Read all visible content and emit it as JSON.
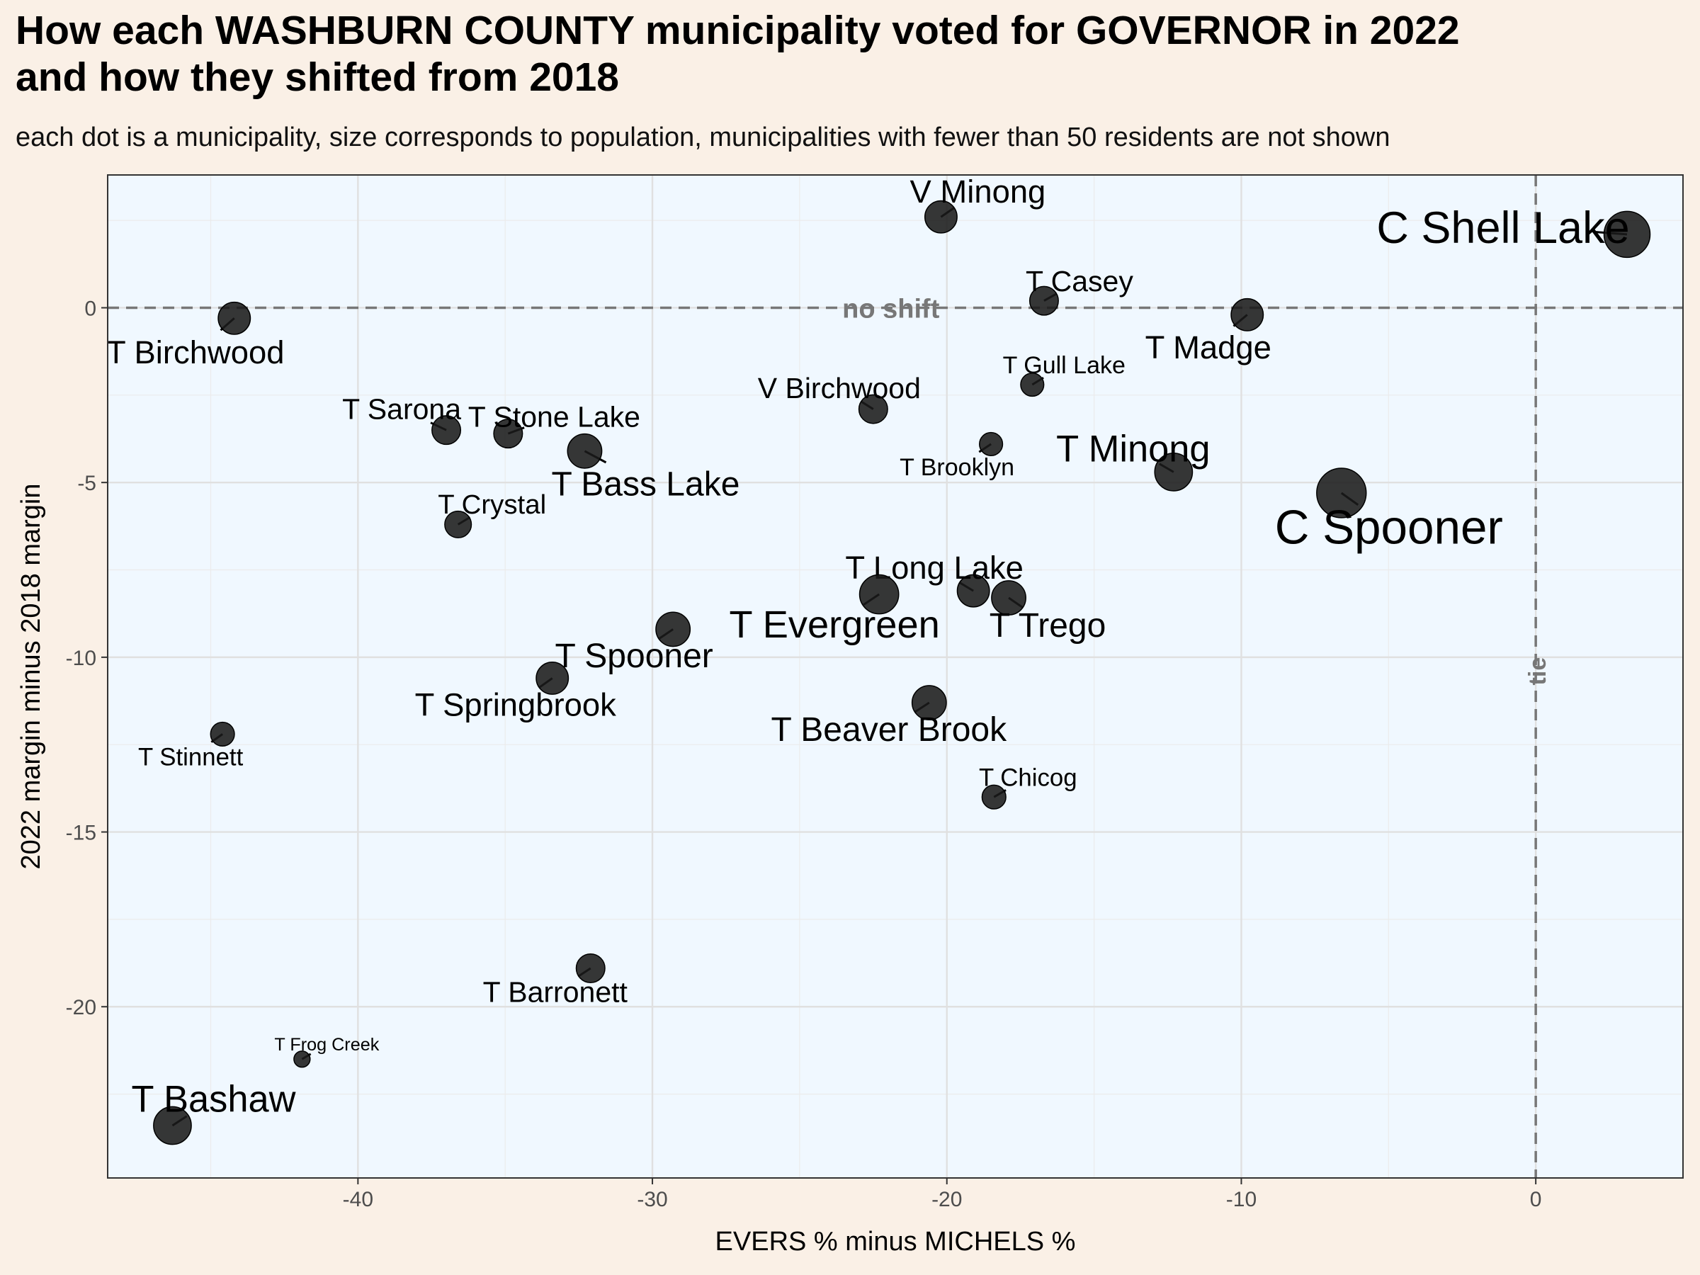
{
  "header": {
    "title_line1": "How each WASHBURN COUNTY municipality voted for GOVERNOR in 2022",
    "title_line2": "and how they shifted from 2018",
    "subtitle": "each dot is a municipality, size corresponds to population, municipalities with fewer than 50 residents are not shown"
  },
  "chart_data": {
    "type": "scatter",
    "title": "How each WASHBURN COUNTY municipality voted for GOVERNOR in 2022 and how they shifted from 2018",
    "subtitle": "each dot is a municipality, size corresponds to population, municipalities with fewer than 50 residents are not shown",
    "xlabel": "EVERS % minus MICHELS %",
    "ylabel": "2022 margin minus 2018 margin",
    "xlim": [
      -48.5,
      5
    ],
    "ylim": [
      -24.9,
      3.8
    ],
    "x_ticks": [
      -40,
      -30,
      -20,
      -10,
      0
    ],
    "y_ticks": [
      0,
      -5,
      -10,
      -15,
      -20
    ],
    "grid": true,
    "reference_lines": [
      {
        "axis": "y",
        "value": 0,
        "label": "no shift",
        "style": "dashed"
      },
      {
        "axis": "x",
        "value": 0,
        "label": "tie",
        "style": "dashed"
      }
    ],
    "colors": {
      "panel": "#f0f8ff",
      "page": "#faf0e6",
      "dot": "#1a1a1a",
      "refline": "#777777"
    },
    "points": [
      {
        "name": "C Shell Lake",
        "x": 3.1,
        "y": 2.1,
        "size": 5
      },
      {
        "name": "V Minong",
        "x": -20.2,
        "y": 2.6,
        "size": 3
      },
      {
        "name": "T Casey",
        "x": -16.7,
        "y": 0.2,
        "size": 2.5
      },
      {
        "name": "T Madge",
        "x": -9.8,
        "y": -0.2,
        "size": 3
      },
      {
        "name": "T Birchwood",
        "x": -44.2,
        "y": -0.3,
        "size": 3
      },
      {
        "name": "T Gull Lake",
        "x": -17.1,
        "y": -2.2,
        "size": 1.7
      },
      {
        "name": "V Birchwood",
        "x": -22.5,
        "y": -2.9,
        "size": 2.5
      },
      {
        "name": "T Sarona",
        "x": -37.0,
        "y": -3.5,
        "size": 2.5
      },
      {
        "name": "T Stone Lake",
        "x": -34.9,
        "y": -3.6,
        "size": 2.5
      },
      {
        "name": "T Bass Lake",
        "x": -32.3,
        "y": -4.1,
        "size": 3.3
      },
      {
        "name": "T Brooklyn",
        "x": -18.5,
        "y": -3.9,
        "size": 1.7
      },
      {
        "name": "T Minong",
        "x": -12.3,
        "y": -4.7,
        "size": 3.8
      },
      {
        "name": "C Spooner",
        "x": -6.6,
        "y": -5.3,
        "size": 5.5
      },
      {
        "name": "T Crystal",
        "x": -36.6,
        "y": -6.2,
        "size": 2.2
      },
      {
        "name": "T Long Lake",
        "x": -19.1,
        "y": -8.1,
        "size": 3
      },
      {
        "name": "T Evergreen",
        "x": -22.3,
        "y": -8.2,
        "size": 4
      },
      {
        "name": "T Trego",
        "x": -17.9,
        "y": -8.3,
        "size": 3.3
      },
      {
        "name": "T Spooner",
        "x": -29.3,
        "y": -9.2,
        "size": 3.3
      },
      {
        "name": "T Springbrook",
        "x": -33.4,
        "y": -10.6,
        "size": 3
      },
      {
        "name": "T Beaver Brook",
        "x": -20.6,
        "y": -11.3,
        "size": 3.3
      },
      {
        "name": "T Stinnett",
        "x": -44.6,
        "y": -12.2,
        "size": 1.8
      },
      {
        "name": "T Chicog",
        "x": -18.4,
        "y": -14.0,
        "size": 1.8
      },
      {
        "name": "T Barronett",
        "x": -32.1,
        "y": -18.9,
        "size": 2.5
      },
      {
        "name": "T Frog Creek",
        "x": -41.9,
        "y": -21.5,
        "size": 0.7
      },
      {
        "name": "T Bashaw",
        "x": -46.3,
        "y": -23.4,
        "size": 3.8
      }
    ]
  }
}
